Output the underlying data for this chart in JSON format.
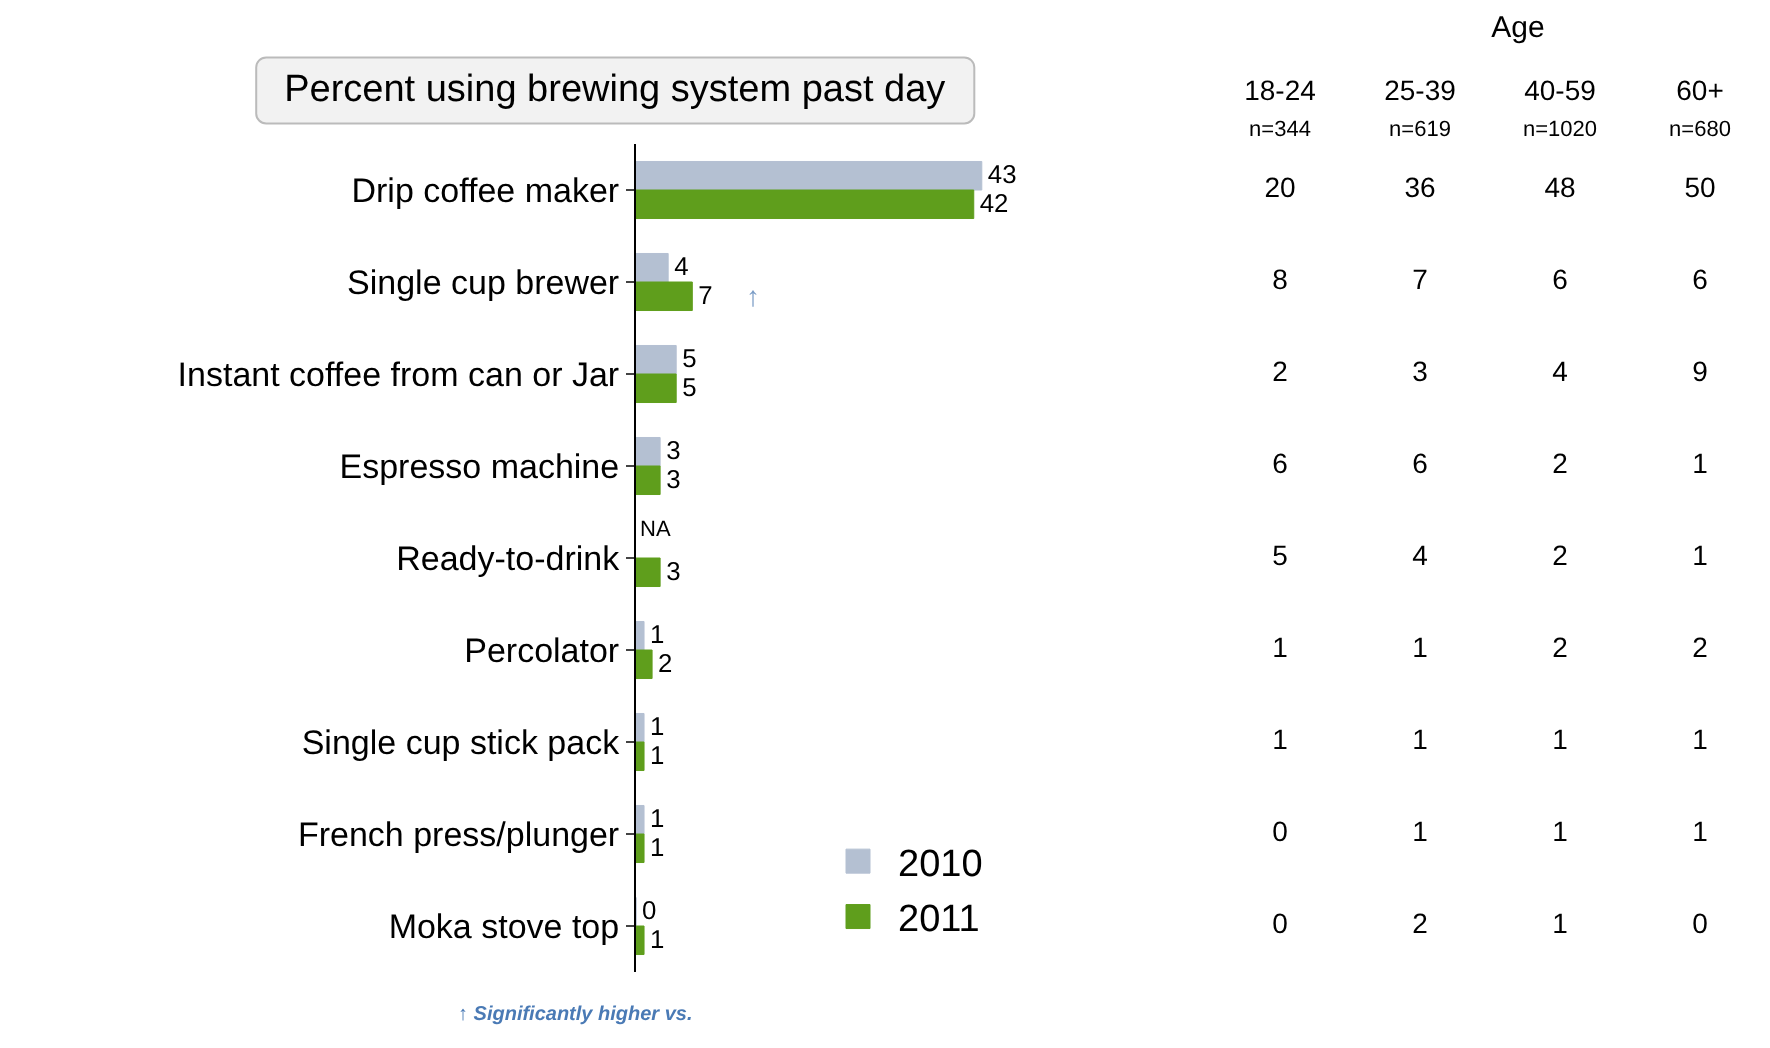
{
  "chart_data": [
    {
      "type": "bar",
      "orientation": "horizontal",
      "title": "Percent using brewing system past day",
      "categories": [
        "Drip coffee maker",
        "Single cup brewer",
        "Instant coffee from can or Jar",
        "Espresso machine",
        "Ready-to-drink",
        "Percolator",
        "Single cup stick pack",
        "French press/plunger",
        "Moka stove top"
      ],
      "series": [
        {
          "name": "2010",
          "color": "#b4c0d2",
          "values": [
            43,
            4,
            5,
            3,
            null,
            1,
            1,
            1,
            0
          ],
          "value_labels": [
            "43",
            "4",
            "5",
            "3",
            "NA",
            "1",
            "1",
            "1",
            "0"
          ]
        },
        {
          "name": "2011",
          "color": "#5f9e1c",
          "values": [
            42,
            7,
            5,
            3,
            3,
            2,
            1,
            1,
            1
          ],
          "value_labels": [
            "42",
            "7",
            "5",
            "3",
            "3",
            "2",
            "1",
            "1",
            "1"
          ]
        }
      ],
      "tick_labels": "y",
      "legend": "bottom right",
      "annotations": [
        "↑ Significantly higher vs.",
        {
          "text": "↑",
          "x": 7,
          "y": "Single cup brewer"
        }
      ]
    },
    {
      "type": "heatmap",
      "title": "Age",
      "tick_labels": "x",
      "categories": [
        "18-24\nn=344",
        "25-39\nn=619",
        "40-59\nn=1020",
        "60+\nn=680"
      ],
      "y_categories": [
        null,
        null,
        null,
        null,
        null,
        null,
        null,
        null,
        null
      ],
      "cells": [
        [
          20,
          36,
          48,
          50
        ],
        [
          8,
          7,
          6,
          6
        ],
        [
          2,
          3,
          4,
          9
        ],
        [
          6,
          6,
          2,
          1
        ],
        [
          5,
          4,
          2,
          1
        ],
        [
          1,
          1,
          2,
          2
        ],
        [
          1,
          1,
          1,
          1
        ],
        [
          0,
          1,
          1,
          1
        ],
        [
          0,
          2,
          1,
          0
        ]
      ],
      "data_labels": true
    }
  ]
}
